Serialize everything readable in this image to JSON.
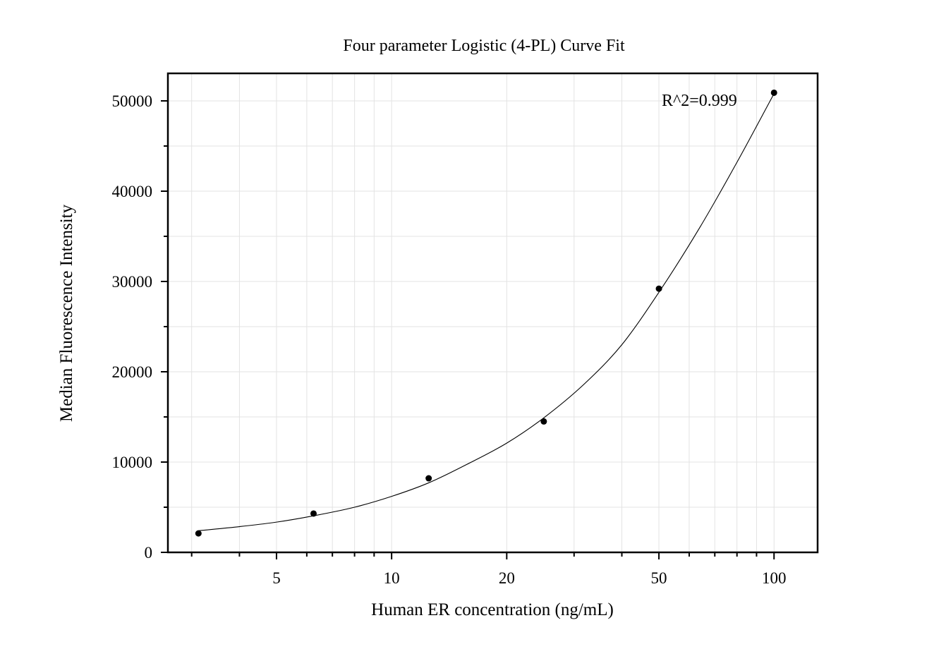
{
  "chart_data": {
    "type": "scatter",
    "title": "Four parameter Logistic (4-PL) Curve Fit",
    "xlabel": "Human ER concentration (ng/mL)",
    "ylabel": "Median Fluorescence Intensity",
    "xscale": "log",
    "xlim": [
      2.6,
      130
    ],
    "ylim": [
      0,
      50000
    ],
    "x_ticks": [
      5,
      10,
      20,
      50,
      100
    ],
    "y_ticks": [
      0,
      10000,
      20000,
      30000,
      40000,
      50000
    ],
    "grid": true,
    "annotation": "R^2=0.999",
    "series": [
      {
        "points": [
          {
            "x": 3.125,
            "y": 2100
          },
          {
            "x": 6.25,
            "y": 4300
          },
          {
            "x": 12.5,
            "y": 8200
          },
          {
            "x": 25,
            "y": 14500
          },
          {
            "x": 50,
            "y": 29200
          },
          {
            "x": 100,
            "y": 50900
          }
        ]
      }
    ],
    "fit_curve": [
      {
        "x": 3.125,
        "y": 2400
      },
      {
        "x": 4,
        "y": 2850
      },
      {
        "x": 5,
        "y": 3350
      },
      {
        "x": 6.25,
        "y": 4050
      },
      {
        "x": 8,
        "y": 5000
      },
      {
        "x": 10,
        "y": 6200
      },
      {
        "x": 12.5,
        "y": 7700
      },
      {
        "x": 16,
        "y": 9900
      },
      {
        "x": 20,
        "y": 12100
      },
      {
        "x": 25,
        "y": 14900
      },
      {
        "x": 32,
        "y": 18700
      },
      {
        "x": 40,
        "y": 23000
      },
      {
        "x": 50,
        "y": 28800
      },
      {
        "x": 64,
        "y": 36000
      },
      {
        "x": 80,
        "y": 43200
      },
      {
        "x": 100,
        "y": 50800
      }
    ]
  }
}
